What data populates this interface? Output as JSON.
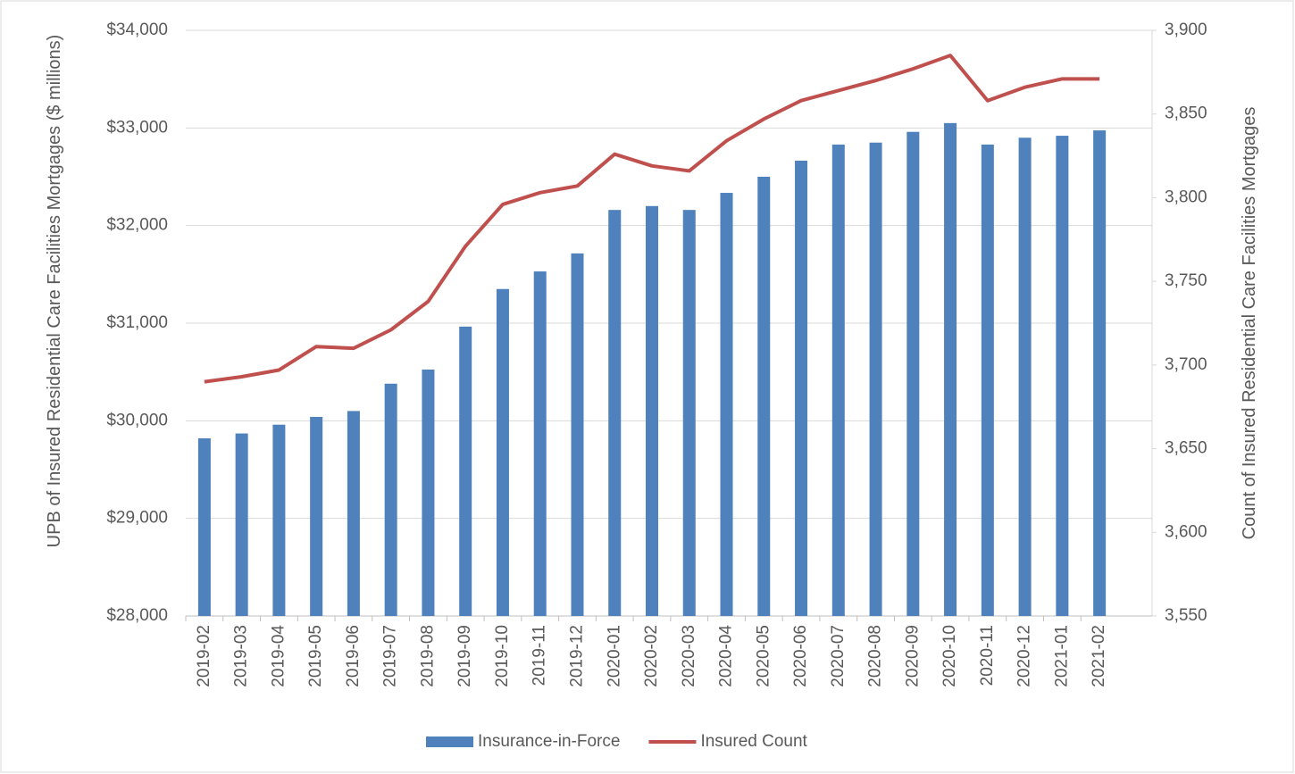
{
  "chart_data": {
    "type": "bar",
    "y_label": "UPB of Insured Residential Care Facilities Mortgages ($ millions)",
    "y2_label": "Count of Insured Residential Care Facilities Mortgages",
    "categories": [
      "2019-02",
      "2019-03",
      "2019-04",
      "2019-05",
      "2019-06",
      "2019-07",
      "2019-08",
      "2019-09",
      "2019-10",
      "2019-11",
      "2019-12",
      "2020-01",
      "2020-02",
      "2020-03",
      "2020-04",
      "2020-05",
      "2020-06",
      "2020-07",
      "2020-08",
      "2020-09",
      "2020-10",
      "2020-11",
      "2020-12",
      "2021-01",
      "2021-02"
    ],
    "series": [
      {
        "name": "Insurance-in-Force",
        "type": "bar",
        "color": "#4f81bd",
        "values": [
          29820,
          29870,
          29960,
          30040,
          30100,
          30380,
          30525,
          30965,
          31350,
          31530,
          31715,
          32160,
          32200,
          32160,
          32335,
          32500,
          32665,
          32830,
          32850,
          32960,
          33050,
          32830,
          32900,
          32920,
          32975
        ]
      },
      {
        "name": "Insured Count",
        "type": "line",
        "axis": "y2",
        "color": "#c0504d",
        "values": [
          3690,
          3693,
          3697,
          3711,
          3710,
          3721,
          3738,
          3771,
          3796,
          3803,
          3807,
          3826,
          3819,
          3816,
          3834,
          3847,
          3858,
          3864,
          3870,
          3877,
          3885,
          3858,
          3866,
          3871,
          3871
        ]
      }
    ],
    "ylim": [
      28000,
      34000
    ],
    "yticks": [
      {
        "value": 28000,
        "label": "$28,000"
      },
      {
        "value": 29000,
        "label": "$29,000"
      },
      {
        "value": 30000,
        "label": "$30,000"
      },
      {
        "value": 31000,
        "label": "$31,000"
      },
      {
        "value": 32000,
        "label": "$32,000"
      },
      {
        "value": 33000,
        "label": "$33,000"
      },
      {
        "value": 34000,
        "label": "$34,000"
      }
    ],
    "y2lim": [
      3550,
      3900
    ],
    "y2ticks": [
      {
        "value": 3550,
        "label": "3,550"
      },
      {
        "value": 3600,
        "label": "3,600"
      },
      {
        "value": 3650,
        "label": "3,650"
      },
      {
        "value": 3700,
        "label": "3,700"
      },
      {
        "value": 3750,
        "label": "3,750"
      },
      {
        "value": 3800,
        "label": "3,800"
      },
      {
        "value": 3850,
        "label": "3,850"
      },
      {
        "value": 3900,
        "label": "3,900"
      }
    ],
    "grid": true,
    "legend": "bottom"
  }
}
